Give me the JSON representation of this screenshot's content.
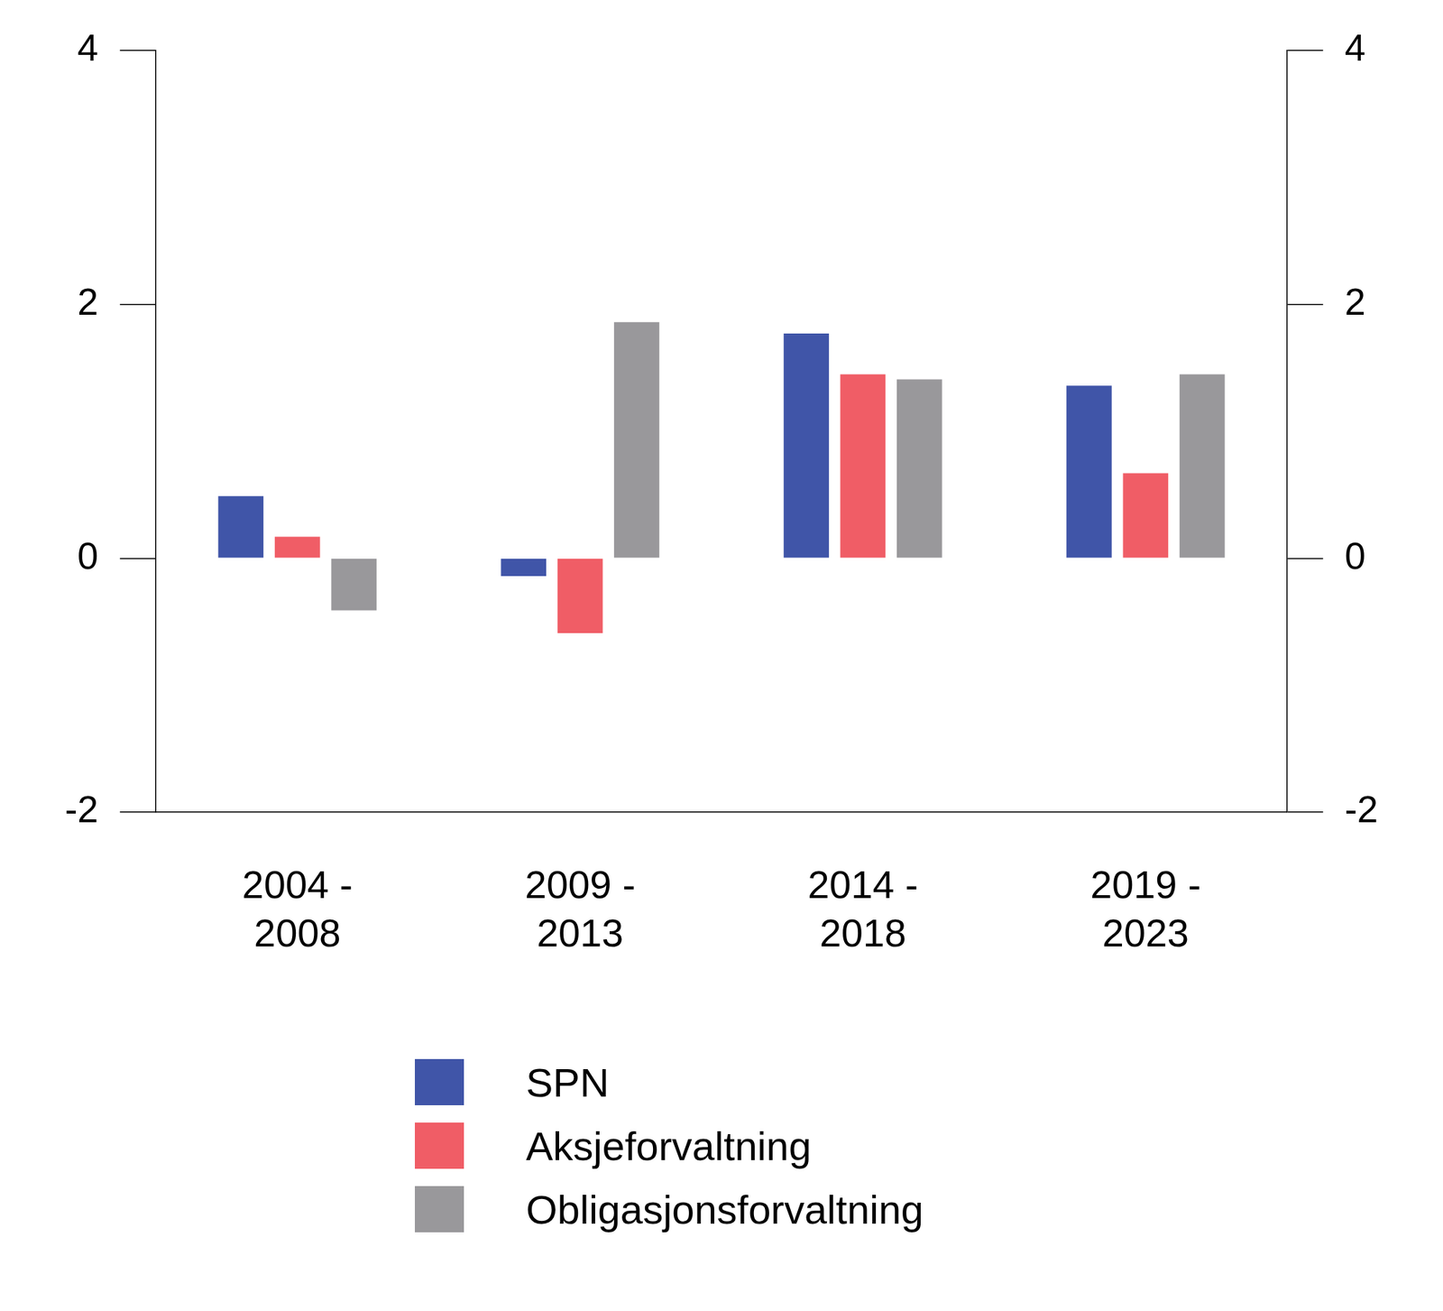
{
  "chart_data": {
    "type": "bar",
    "categories": [
      "2004 - 2008",
      "2009 - 2013",
      "2014 - 2018",
      "2019 - 2023"
    ],
    "series": [
      {
        "name": "SPN",
        "color": "#4055a8",
        "values": [
          0.49,
          -0.14,
          1.77,
          1.36
        ]
      },
      {
        "name": "Aksjeforvaltning",
        "color": "#f05d66",
        "values": [
          0.17,
          -0.59,
          1.45,
          0.67
        ]
      },
      {
        "name": "Obligasjonsforvaltning",
        "color": "#99989b",
        "values": [
          -0.41,
          1.86,
          1.41,
          1.45
        ]
      }
    ],
    "ylim": [
      -2,
      4
    ],
    "yticks": [
      -2,
      0,
      2,
      4
    ],
    "y2lim": [
      -2,
      4
    ],
    "y2ticks": [
      -2,
      0,
      2,
      4
    ],
    "grid": false,
    "legend": "bottom"
  }
}
